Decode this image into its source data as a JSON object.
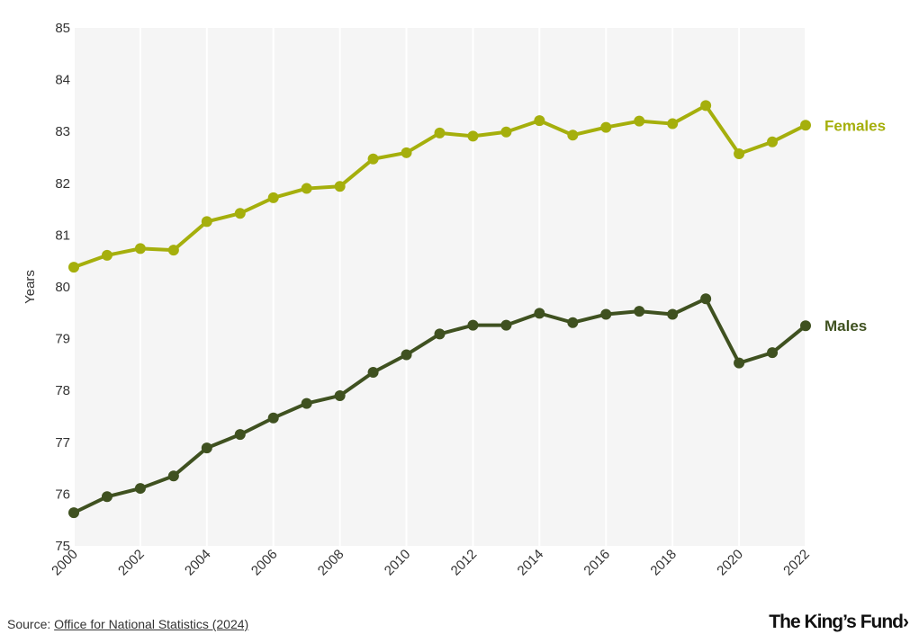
{
  "chart_data": {
    "type": "line",
    "title": "",
    "xlabel": "",
    "ylabel": "Years",
    "ylim": [
      75,
      85
    ],
    "xlim": [
      2000,
      2022
    ],
    "yticks": [
      "75",
      "76",
      "77",
      "78",
      "79",
      "80",
      "81",
      "82",
      "83",
      "84",
      "85"
    ],
    "xticks": [
      "2000",
      "2002",
      "2004",
      "2006",
      "2008",
      "2010",
      "2012",
      "2014",
      "2016",
      "2018",
      "2020",
      "2022"
    ],
    "x": [
      2000,
      2001,
      2002,
      2003,
      2004,
      2005,
      2006,
      2007,
      2008,
      2009,
      2010,
      2011,
      2012,
      2013,
      2014,
      2015,
      2016,
      2017,
      2018,
      2019,
      2020,
      2021,
      2022
    ],
    "grid": true,
    "series": [
      {
        "name": "Females",
        "color": "#a5af0c",
        "values": [
          80.38,
          80.61,
          80.74,
          80.71,
          81.26,
          81.42,
          81.72,
          81.9,
          81.94,
          82.47,
          82.59,
          82.97,
          82.91,
          82.99,
          83.21,
          82.93,
          83.08,
          83.2,
          83.15,
          83.5,
          82.57,
          82.8,
          83.12
        ]
      },
      {
        "name": "Males",
        "color": "#3f5120",
        "values": [
          75.64,
          75.95,
          76.11,
          76.35,
          76.89,
          77.15,
          77.47,
          77.75,
          77.9,
          78.35,
          78.69,
          79.09,
          79.26,
          79.26,
          79.49,
          79.31,
          79.47,
          79.53,
          79.47,
          79.77,
          78.53,
          78.73,
          79.25
        ]
      }
    ]
  },
  "footer": {
    "source_prefix": "Source: ",
    "source_link": "Office for National Statistics (2024)",
    "brand": "The King’s Fund›"
  }
}
